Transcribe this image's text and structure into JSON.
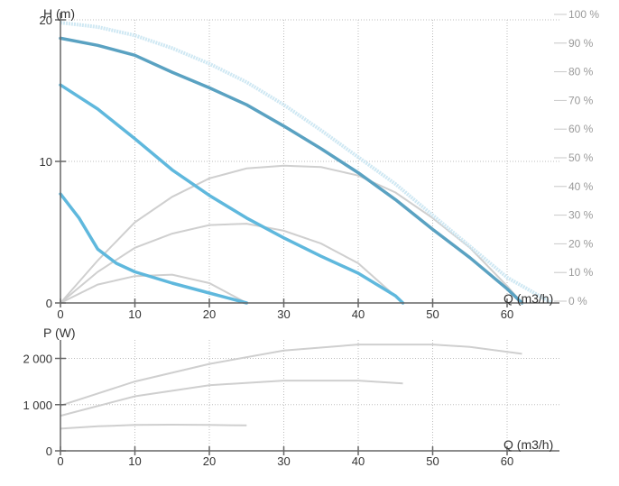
{
  "colors": {
    "head_curve": "#5fb8dd",
    "head_curve_max": "#5aa2c2",
    "efficiency_curve": "#cfe8f3",
    "power_curve": "#cfcfcf",
    "grid": "#bdbdbd",
    "axis": "#666666",
    "text": "#333333",
    "right_axis_text": "#9a9a9a"
  },
  "chart_data": [
    {
      "type": "line",
      "name": "head-chart",
      "title": "",
      "ylabel": "H (m)",
      "xlabel": "Q (m3/h)",
      "xlim": [
        0,
        67
      ],
      "ylim": [
        0,
        20
      ],
      "xticks": [
        0,
        10,
        20,
        30,
        40,
        50,
        60
      ],
      "yticks": [
        0,
        10,
        20
      ],
      "y2_ticks": [
        "0 %",
        "10 %",
        "20 %",
        "30 %",
        "40 %",
        "50 %",
        "60 %",
        "70 %",
        "80 %",
        "90 %",
        "100 %"
      ],
      "grid": true,
      "series": [
        {
          "kind": "head",
          "x": [
            0,
            5,
            10,
            15,
            20,
            25,
            30,
            35,
            40,
            45,
            50,
            55,
            60,
            62
          ],
          "y": [
            18.7,
            18.2,
            17.5,
            16.3,
            15.2,
            14.0,
            12.5,
            10.9,
            9.2,
            7.3,
            5.2,
            3.2,
            1.0,
            0.0
          ]
        },
        {
          "kind": "head",
          "x": [
            0,
            5,
            10,
            15,
            20,
            25,
            30,
            35,
            40,
            45,
            46
          ],
          "y": [
            15.4,
            13.7,
            11.6,
            9.4,
            7.6,
            6.0,
            4.6,
            3.3,
            2.1,
            0.5,
            0.0
          ]
        },
        {
          "kind": "head",
          "x": [
            0,
            2.5,
            5,
            7.5,
            10,
            15,
            20,
            25
          ],
          "y": [
            7.7,
            6.0,
            3.8,
            2.8,
            2.2,
            1.4,
            0.7,
            0.0
          ]
        },
        {
          "kind": "efficiency-max",
          "x": [
            0,
            5,
            10,
            15,
            20,
            25,
            30,
            35,
            40,
            45,
            50,
            55,
            60,
            66
          ],
          "y": [
            19.8,
            19.5,
            18.9,
            18.0,
            16.9,
            15.6,
            14.0,
            12.2,
            10.3,
            8.4,
            6.2,
            4.0,
            1.8,
            0.0
          ]
        },
        {
          "kind": "efficiency",
          "x": [
            0,
            5,
            10,
            15,
            20,
            25,
            30,
            35,
            40,
            45,
            50,
            55,
            60,
            62
          ],
          "y": [
            0,
            3.0,
            5.7,
            7.5,
            8.8,
            9.5,
            9.7,
            9.6,
            9.0,
            7.8,
            6.0,
            3.9,
            1.2,
            0
          ]
        },
        {
          "kind": "efficiency",
          "x": [
            0,
            5,
            10,
            15,
            20,
            25,
            30,
            35,
            40,
            46
          ],
          "y": [
            0,
            2.2,
            3.9,
            4.9,
            5.5,
            5.6,
            5.1,
            4.2,
            2.8,
            0
          ]
        },
        {
          "kind": "efficiency",
          "x": [
            0,
            5,
            10,
            15,
            20,
            25
          ],
          "y": [
            0,
            1.3,
            1.9,
            2.0,
            1.4,
            0
          ]
        }
      ]
    },
    {
      "type": "line",
      "name": "power-chart",
      "title": "",
      "ylabel": "P (W)",
      "xlabel": "Q (m3/h)",
      "xlim": [
        0,
        67
      ],
      "ylim": [
        0,
        2400
      ],
      "xticks": [
        0,
        10,
        20,
        30,
        40,
        50,
        60
      ],
      "yticks": [
        0,
        1000,
        2000
      ],
      "ytick_labels": [
        "0",
        "1 000",
        "2 000"
      ],
      "grid": true,
      "series": [
        {
          "kind": "power",
          "x": [
            0,
            10,
            20,
            30,
            40,
            50,
            55,
            62
          ],
          "y": [
            980,
            1500,
            1880,
            2170,
            2300,
            2300,
            2250,
            2100
          ]
        },
        {
          "kind": "power",
          "x": [
            0,
            10,
            20,
            30,
            40,
            46
          ],
          "y": [
            760,
            1180,
            1420,
            1520,
            1520,
            1460
          ]
        },
        {
          "kind": "power",
          "x": [
            0,
            5,
            10,
            15,
            20,
            25
          ],
          "y": [
            480,
            530,
            560,
            565,
            560,
            550
          ]
        }
      ]
    }
  ]
}
